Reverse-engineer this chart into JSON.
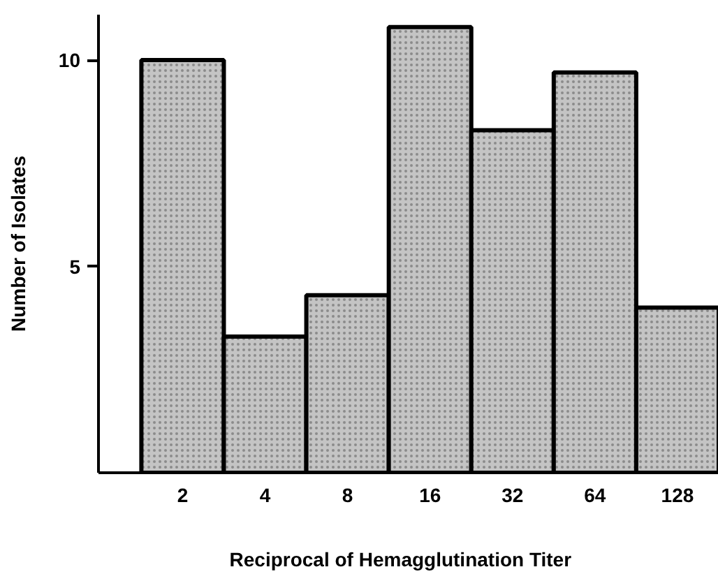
{
  "chart_data": {
    "type": "bar",
    "xlabel": "Reciprocal  of  Hemagglutination  Titer",
    "ylabel": "Number of Isolates",
    "categories": [
      "2",
      "4",
      "8",
      "16",
      "32",
      "64",
      "128"
    ],
    "values": [
      10,
      3.3,
      4.3,
      10.8,
      8.3,
      9.7,
      4.0
    ],
    "color": "#c4c4c4",
    "ylim": [
      0,
      11.1
    ],
    "yticks": [
      5,
      10
    ]
  }
}
